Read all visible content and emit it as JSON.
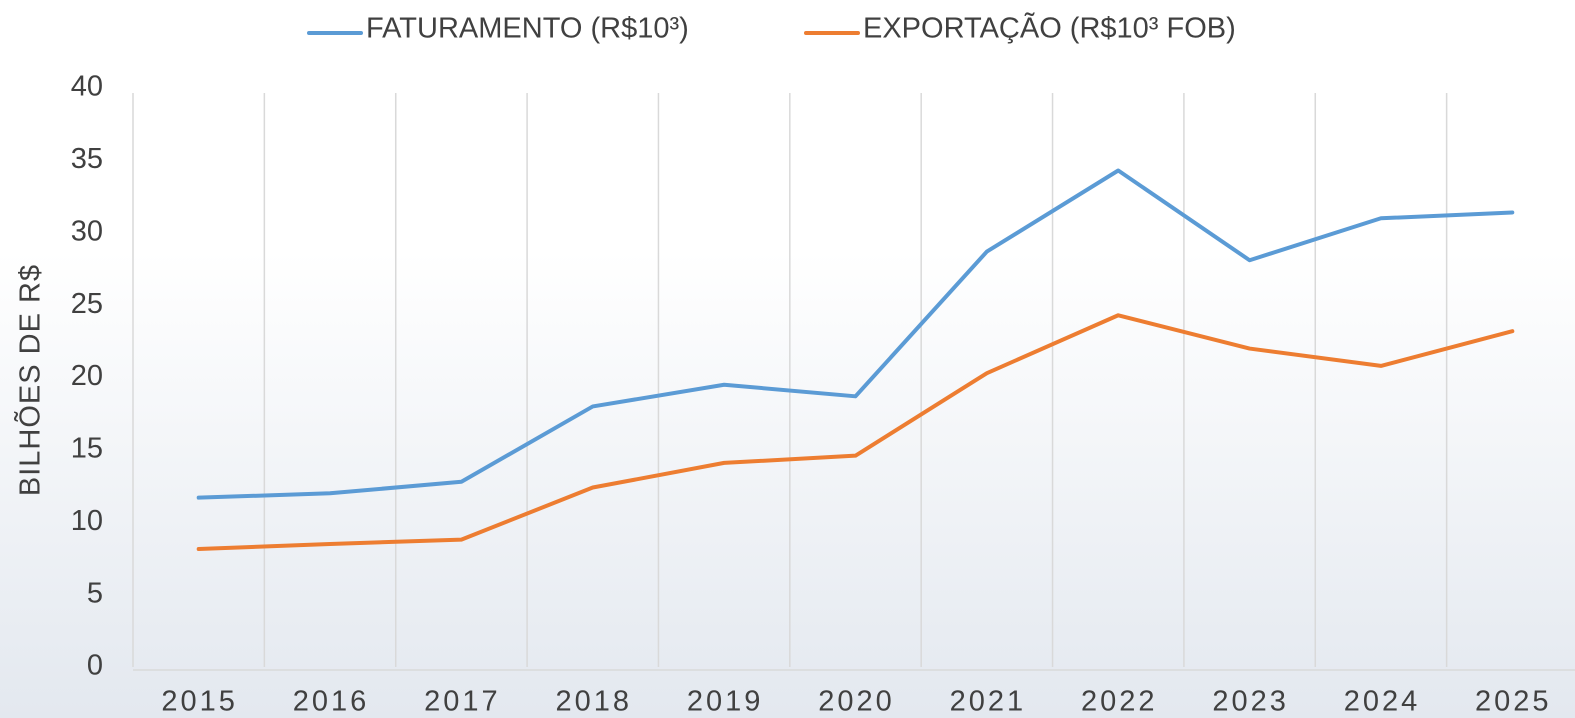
{
  "chart_data": {
    "type": "line",
    "y_label": "BILHÕES DE R$",
    "categories": [
      "2015",
      "2016",
      "2017",
      "2018",
      "2019",
      "2020",
      "2021",
      "2022",
      "2023",
      "2024",
      "2025"
    ],
    "series": [
      {
        "name": "FATURAMENTO (R$10³)",
        "color": "#5b9bd5",
        "values": [
          11.7,
          12.0,
          12.8,
          18.0,
          19.5,
          18.7,
          28.7,
          34.3,
          28.1,
          31.0,
          31.4
        ]
      },
      {
        "name": "EXPORTAÇÃO (R$10³ FOB)",
        "color": "#ed7d31",
        "values": [
          8.15,
          8.5,
          8.8,
          12.4,
          14.1,
          14.6,
          20.3,
          24.3,
          22.0,
          20.8,
          23.2
        ]
      }
    ],
    "ylim": [
      0,
      40
    ],
    "yticks": [
      0,
      5,
      10,
      15,
      20,
      25,
      30,
      35,
      40
    ],
    "legend": "top"
  }
}
